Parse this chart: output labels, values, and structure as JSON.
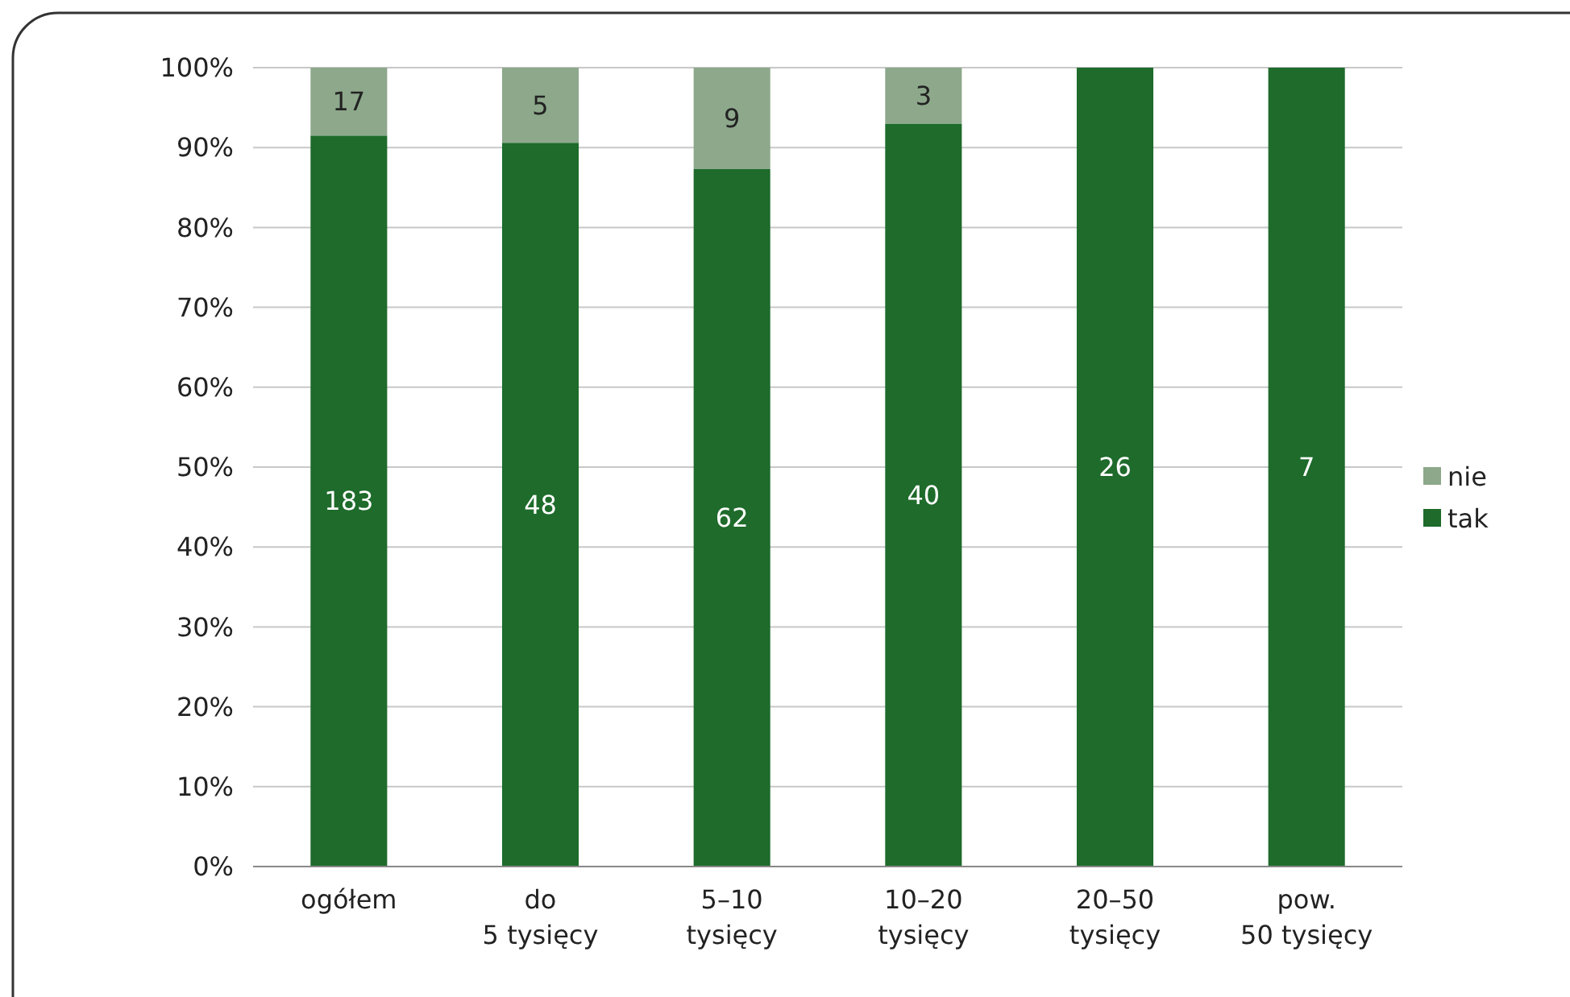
{
  "chart_data": {
    "type": "bar",
    "stacked": true,
    "categories": [
      "ogółem",
      "do\n5 tysięcy",
      "5–10\ntysięcy",
      "10–20\ntysięcy",
      "20–50\ntysięcy",
      "pow.\n50 tysięcy"
    ],
    "series": [
      {
        "name": "tak",
        "color": "#1e6b2b",
        "values": [
          91.5,
          90.6,
          87.3,
          93.0,
          100,
          100
        ]
      },
      {
        "name": "nie",
        "color": "#8da88b",
        "values": [
          8.5,
          9.4,
          12.7,
          7.0,
          0,
          0
        ]
      }
    ],
    "annotations": [
      "183",
      "48",
      "62",
      "40",
      "26",
      "7",
      "17",
      "5",
      "9",
      "3"
    ],
    "ylim": [
      0,
      100
    ],
    "yticks": [
      {
        "value": 0,
        "label": "0%"
      },
      {
        "value": 10,
        "label": "10%"
      },
      {
        "value": 20,
        "label": "20%"
      },
      {
        "value": 30,
        "label": "30%"
      },
      {
        "value": 40,
        "label": "40%"
      },
      {
        "value": 50,
        "label": "50%"
      },
      {
        "value": 60,
        "label": "60%"
      },
      {
        "value": 70,
        "label": "70%"
      },
      {
        "value": 80,
        "label": "80%"
      },
      {
        "value": 90,
        "label": "90%"
      },
      {
        "value": 100,
        "label": "100%"
      }
    ],
    "grid": "y",
    "legend": "right"
  }
}
